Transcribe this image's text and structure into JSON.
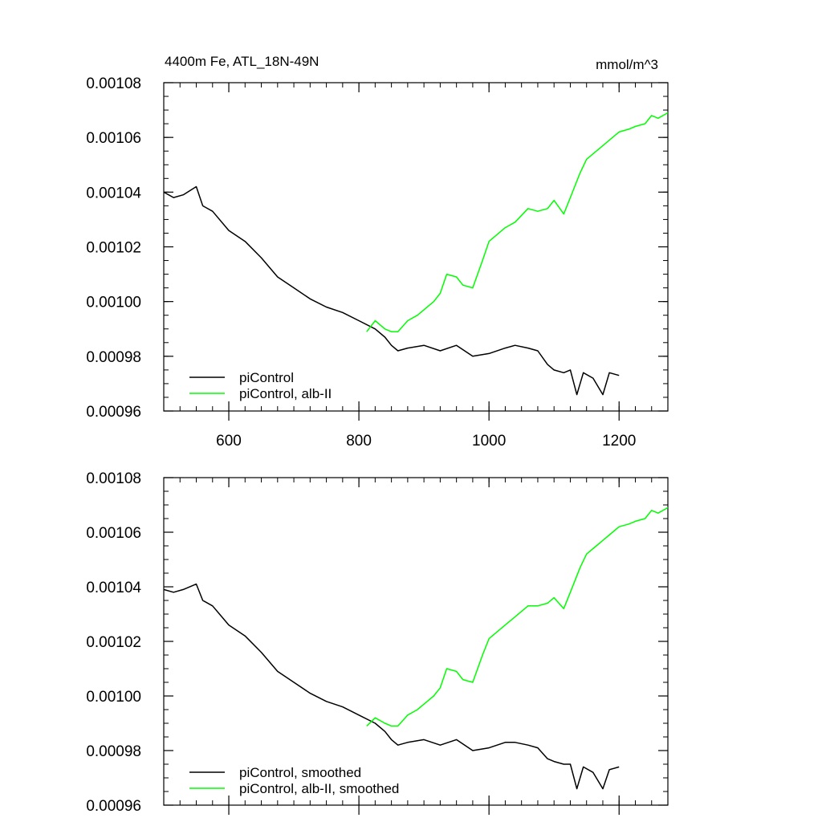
{
  "chart_data": [
    {
      "type": "line",
      "title": "4400m Fe, ATL_18N-49N",
      "units": "mmol/m^3",
      "xlim": [
        500,
        1275
      ],
      "ylim": [
        0.00096,
        0.00108
      ],
      "x_ticks": [
        600,
        800,
        1000,
        1200
      ],
      "x_tick_labels": [
        "600",
        "800",
        "1000",
        "1200"
      ],
      "y_ticks": [
        0.00096,
        0.00098,
        0.001,
        0.00102,
        0.00104,
        0.00106,
        0.00108
      ],
      "y_tick_labels": [
        "0.00096",
        "0.00098",
        "0.00100",
        "0.00102",
        "0.00104",
        "0.00106",
        "0.00108"
      ],
      "legend_position": "bottom-left",
      "grid": false,
      "series": [
        {
          "name": "piControl",
          "color": "#000000",
          "x": [
            500,
            515,
            530,
            550,
            560,
            575,
            600,
            625,
            650,
            675,
            700,
            725,
            750,
            775,
            800,
            825,
            840,
            850,
            860,
            875,
            900,
            925,
            950,
            975,
            1000,
            1025,
            1040,
            1060,
            1075,
            1090,
            1100,
            1115,
            1125,
            1135,
            1145,
            1160,
            1175,
            1185,
            1200
          ],
          "values": [
            0.00104,
            0.001038,
            0.001039,
            0.001042,
            0.001035,
            0.001033,
            0.001026,
            0.001022,
            0.001016,
            0.001009,
            0.001005,
            0.001001,
            0.000998,
            0.000996,
            0.000993,
            0.00099,
            0.000987,
            0.000984,
            0.000982,
            0.000983,
            0.000984,
            0.000982,
            0.000984,
            0.00098,
            0.000981,
            0.000983,
            0.000984,
            0.000983,
            0.000982,
            0.000977,
            0.000975,
            0.000974,
            0.000975,
            0.000966,
            0.000974,
            0.000972,
            0.000966,
            0.000974,
            0.000973
          ]
        },
        {
          "name": "piControl, alb-II",
          "color": "#00ff00",
          "x": [
            812,
            825,
            840,
            850,
            860,
            875,
            890,
            900,
            915,
            925,
            935,
            950,
            960,
            975,
            990,
            1000,
            1025,
            1040,
            1060,
            1075,
            1090,
            1100,
            1115,
            1125,
            1140,
            1150,
            1165,
            1175,
            1190,
            1200,
            1215,
            1225,
            1240,
            1250,
            1260,
            1275
          ],
          "values": [
            0.000989,
            0.000993,
            0.00099,
            0.000989,
            0.000989,
            0.000993,
            0.000995,
            0.000997,
            0.001,
            0.001003,
            0.00101,
            0.001009,
            0.001006,
            0.001005,
            0.001015,
            0.001022,
            0.001027,
            0.001029,
            0.001034,
            0.001033,
            0.001034,
            0.001037,
            0.001032,
            0.001038,
            0.001047,
            0.001052,
            0.001055,
            0.001057,
            0.00106,
            0.001062,
            0.001063,
            0.001064,
            0.001065,
            0.001068,
            0.001067,
            0.001069
          ]
        }
      ]
    },
    {
      "type": "line",
      "xlim": [
        500,
        1275
      ],
      "ylim": [
        0.00096,
        0.00108
      ],
      "x_ticks": [
        600,
        800,
        1000,
        1200
      ],
      "y_ticks": [
        0.00096,
        0.00098,
        0.001,
        0.00102,
        0.00104,
        0.00106,
        0.00108
      ],
      "y_tick_labels": [
        "0.00096",
        "0.00098",
        "0.00100",
        "0.00102",
        "0.00104",
        "0.00106",
        "0.00108"
      ],
      "legend_position": "bottom-left",
      "grid": false,
      "series": [
        {
          "name": "piControl, smoothed",
          "color": "#000000",
          "x": [
            500,
            515,
            530,
            550,
            560,
            575,
            600,
            625,
            650,
            675,
            700,
            725,
            750,
            775,
            800,
            825,
            840,
            850,
            860,
            875,
            900,
            925,
            950,
            975,
            1000,
            1025,
            1040,
            1060,
            1075,
            1090,
            1100,
            1115,
            1125,
            1135,
            1145,
            1160,
            1175,
            1185,
            1200
          ],
          "values": [
            0.001039,
            0.001038,
            0.001039,
            0.001041,
            0.001035,
            0.001033,
            0.001026,
            0.001022,
            0.001016,
            0.001009,
            0.001005,
            0.001001,
            0.000998,
            0.000996,
            0.000993,
            0.00099,
            0.000987,
            0.000984,
            0.000982,
            0.000983,
            0.000984,
            0.000982,
            0.000984,
            0.00098,
            0.000981,
            0.000983,
            0.000983,
            0.000982,
            0.000981,
            0.000977,
            0.000976,
            0.000975,
            0.000975,
            0.000966,
            0.000974,
            0.000972,
            0.000966,
            0.000973,
            0.000974
          ]
        },
        {
          "name": "piControl, alb-II, smoothed",
          "color": "#00ff00",
          "x": [
            812,
            825,
            840,
            850,
            860,
            875,
            890,
            900,
            915,
            925,
            935,
            950,
            960,
            975,
            990,
            1000,
            1025,
            1040,
            1060,
            1075,
            1090,
            1100,
            1115,
            1125,
            1140,
            1150,
            1165,
            1175,
            1190,
            1200,
            1215,
            1225,
            1240,
            1250,
            1260,
            1275
          ],
          "values": [
            0.000989,
            0.000992,
            0.00099,
            0.000989,
            0.000989,
            0.000993,
            0.000995,
            0.000997,
            0.001,
            0.001003,
            0.00101,
            0.001009,
            0.001006,
            0.001005,
            0.001015,
            0.001021,
            0.001026,
            0.001029,
            0.001033,
            0.001033,
            0.001034,
            0.001036,
            0.001032,
            0.001038,
            0.001047,
            0.001052,
            0.001055,
            0.001057,
            0.00106,
            0.001062,
            0.001063,
            0.001064,
            0.001065,
            0.001068,
            0.001067,
            0.001069
          ]
        }
      ]
    }
  ]
}
